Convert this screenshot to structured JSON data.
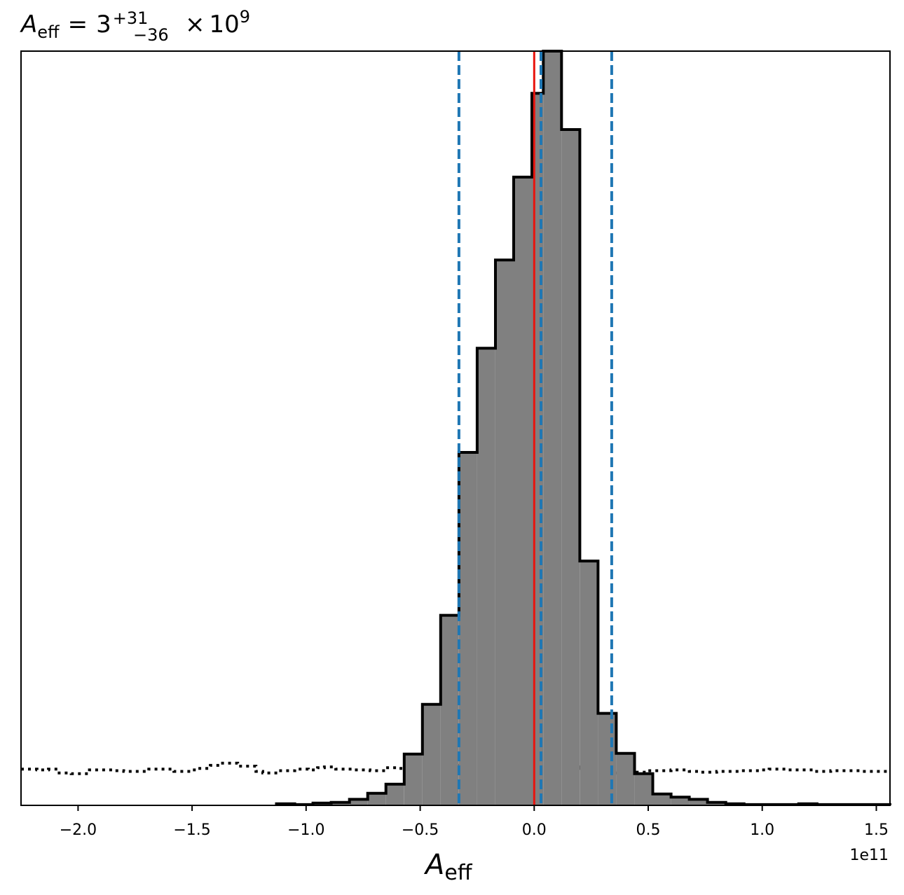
{
  "chart_data": {
    "type": "histogram",
    "title": {
      "symbol": "A",
      "subscript": "eff",
      "equals": "=",
      "value": "3",
      "upper_error": "+31",
      "lower_error": "−36",
      "times": "×",
      "power_base": "10",
      "exponent": "9"
    },
    "xlabel": {
      "symbol": "A",
      "subscript": "eff"
    },
    "offset_label": "1e11",
    "xlim": [
      -2.25,
      1.56
    ],
    "ylim": [
      0,
      1.0
    ],
    "xticks": [
      {
        "value": -2.0,
        "label": "−2.0"
      },
      {
        "value": -1.5,
        "label": "−1.5"
      },
      {
        "value": -1.0,
        "label": "−1.0"
      },
      {
        "value": -0.5,
        "label": "−0.5"
      },
      {
        "value": 0.0,
        "label": "0.0"
      },
      {
        "value": 0.5,
        "label": "0.5"
      },
      {
        "value": 1.0,
        "label": "1.0"
      },
      {
        "value": 1.5,
        "label": "1.5"
      }
    ],
    "posterior": {
      "bin_edges": [
        -1.13,
        -1.05,
        -0.97,
        -0.89,
        -0.81,
        -0.73,
        -0.65,
        -0.57,
        -0.49,
        -0.41,
        -0.33,
        -0.25,
        -0.17,
        -0.09,
        -0.01,
        0.04,
        0.12,
        0.2,
        0.28,
        0.36,
        0.44,
        0.52,
        0.6,
        0.68,
        0.76,
        0.84,
        0.92,
        1.0,
        1.08,
        1.16,
        1.24,
        1.32,
        1.4,
        1.48,
        1.56
      ],
      "counts": [
        0.002,
        0.001,
        0.003,
        0.004,
        0.008,
        0.016,
        0.028,
        0.068,
        0.134,
        0.252,
        0.468,
        0.606,
        0.723,
        0.833,
        0.944,
        1.0,
        0.896,
        0.324,
        0.122,
        0.069,
        0.042,
        0.015,
        0.011,
        0.008,
        0.004,
        0.002,
        0.001,
        0.001,
        0.001,
        0.002,
        0.001,
        0.001,
        0.001,
        0.001
      ],
      "fill_color": "#808080",
      "edge_color": "#000000"
    },
    "prior": {
      "bin_edges": [
        -2.25,
        -2.18,
        -2.13,
        -2.09,
        -2.03,
        -1.95,
        -1.85,
        -1.8,
        -1.69,
        -1.58,
        -1.49,
        -1.42,
        -1.38,
        -1.3,
        -1.22,
        -1.19,
        -1.12,
        -1.05,
        -0.99,
        -0.95,
        -0.92,
        -0.87,
        -0.8,
        -0.72,
        -0.65,
        -0.6,
        -0.56,
        -0.49,
        -0.44,
        -0.35,
        -0.2,
        -0.1,
        0.04,
        0.2,
        0.33,
        0.4,
        0.5,
        0.6,
        0.68,
        0.73,
        0.8,
        0.9,
        0.99,
        1.03,
        1.11,
        1.23,
        1.3,
        1.43,
        1.56
      ],
      "counts": [
        0.048,
        0.047,
        0.048,
        0.043,
        0.042,
        0.047,
        0.046,
        0.045,
        0.048,
        0.045,
        0.049,
        0.053,
        0.056,
        0.052,
        0.045,
        0.043,
        0.046,
        0.048,
        0.047,
        0.05,
        0.051,
        0.048,
        0.047,
        0.046,
        0.05,
        0.049,
        0.051,
        0.054,
        0.052,
        0.053,
        0.054,
        0.053,
        0.051,
        0.049,
        0.043,
        0.044,
        0.046,
        0.047,
        0.045,
        0.044,
        0.045,
        0.046,
        0.047,
        0.048,
        0.047,
        0.045,
        0.046,
        0.045
      ],
      "line_color": "#000000",
      "line_style": "dotted"
    },
    "vlines": [
      {
        "x": 0.0,
        "color": "#e8140e",
        "style": "solid",
        "meaning": "injected"
      },
      {
        "x": -0.33,
        "color": "#1f77b4",
        "style": "dashed",
        "meaning": "lower"
      },
      {
        "x": 0.03,
        "color": "#1f77b4",
        "style": "dashed",
        "meaning": "median"
      },
      {
        "x": 0.34,
        "color": "#1f77b4",
        "style": "dashed",
        "meaning": "upper"
      }
    ],
    "grid": false,
    "legend": "none"
  }
}
